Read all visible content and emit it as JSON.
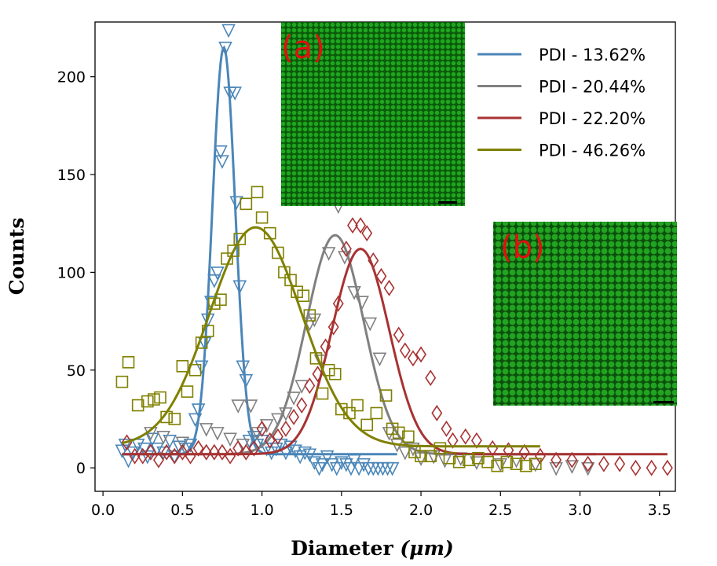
{
  "chart_data": {
    "type": "scatter",
    "title": "",
    "xlabel": "Diameter (μm)",
    "xlabel_main": "Diameter",
    "xlabel_unit": "(μm)",
    "ylabel": "Counts",
    "xlim": [
      -0.05,
      3.6
    ],
    "ylim": [
      -12,
      228
    ],
    "xticks": [
      "0.0",
      "0.5",
      "1.0",
      "1.5",
      "2.0",
      "2.5",
      "3.0",
      "3.5"
    ],
    "xtick_values": [
      0.0,
      0.5,
      1.0,
      1.5,
      2.0,
      2.5,
      3.0,
      3.5
    ],
    "yticks": [
      "0",
      "50",
      "100",
      "150",
      "200"
    ],
    "ytick_values": [
      0,
      50,
      100,
      150,
      200
    ],
    "grid": false,
    "legend_position": "top-right",
    "series": [
      {
        "name": "PDI - 13.62%",
        "color": "#4a86b8",
        "marker": "triangle-down",
        "fit": {
          "peak": 208,
          "center": 0.76,
          "width": 0.072,
          "baseline": 7,
          "xmin": 0.12,
          "xmax": 1.85
        },
        "points": [
          [
            0.12,
            9
          ],
          [
            0.14,
            12
          ],
          [
            0.16,
            4
          ],
          [
            0.19,
            8
          ],
          [
            0.22,
            12
          ],
          [
            0.26,
            10
          ],
          [
            0.28,
            6
          ],
          [
            0.31,
            15
          ],
          [
            0.34,
            10
          ],
          [
            0.38,
            8
          ],
          [
            0.42,
            14
          ],
          [
            0.45,
            6
          ],
          [
            0.48,
            11
          ],
          [
            0.52,
            10
          ],
          [
            0.55,
            12
          ],
          [
            0.58,
            25
          ],
          [
            0.6,
            30
          ],
          [
            0.62,
            52
          ],
          [
            0.64,
            64
          ],
          [
            0.66,
            76
          ],
          [
            0.68,
            85
          ],
          [
            0.7,
            96
          ],
          [
            0.72,
            100
          ],
          [
            0.74,
            162
          ],
          [
            0.75,
            157
          ],
          [
            0.77,
            215
          ],
          [
            0.79,
            224
          ],
          [
            0.8,
            192
          ],
          [
            0.83,
            192
          ],
          [
            0.84,
            136
          ],
          [
            0.86,
            93
          ],
          [
            0.88,
            52
          ],
          [
            0.9,
            45
          ],
          [
            0.92,
            14
          ],
          [
            0.95,
            16
          ],
          [
            0.97,
            12
          ],
          [
            1.0,
            14
          ],
          [
            1.03,
            10
          ],
          [
            1.06,
            8
          ],
          [
            1.09,
            10
          ],
          [
            1.12,
            12
          ],
          [
            1.15,
            8
          ],
          [
            1.18,
            11
          ],
          [
            1.21,
            9
          ],
          [
            1.24,
            6
          ],
          [
            1.27,
            8
          ],
          [
            1.3,
            7
          ],
          [
            1.33,
            3
          ],
          [
            1.36,
            0
          ],
          [
            1.38,
            2
          ],
          [
            1.41,
            6
          ],
          [
            1.44,
            2
          ],
          [
            1.47,
            0
          ],
          [
            1.5,
            3
          ],
          [
            1.53,
            2
          ],
          [
            1.56,
            0
          ],
          [
            1.58,
            4
          ],
          [
            1.61,
            0
          ],
          [
            1.64,
            2
          ],
          [
            1.67,
            0
          ],
          [
            1.7,
            0
          ],
          [
            1.73,
            0
          ],
          [
            1.76,
            0
          ],
          [
            1.79,
            0
          ],
          [
            1.82,
            0
          ]
        ]
      },
      {
        "name": "PDI - 20.44%",
        "color": "#808080",
        "marker": "triangle-down",
        "fit": {
          "peak": 112,
          "center": 1.46,
          "width": 0.18,
          "baseline": 7,
          "xmin": 0.3,
          "xmax": 3.1
        },
        "points": [
          [
            0.3,
            18
          ],
          [
            0.38,
            16
          ],
          [
            0.5,
            13
          ],
          [
            0.65,
            20
          ],
          [
            0.72,
            18
          ],
          [
            0.8,
            15
          ],
          [
            0.85,
            32
          ],
          [
            0.88,
            12
          ],
          [
            0.93,
            32
          ],
          [
            0.97,
            18
          ],
          [
            1.03,
            22
          ],
          [
            1.1,
            25
          ],
          [
            1.15,
            28
          ],
          [
            1.2,
            36
          ],
          [
            1.25,
            42
          ],
          [
            1.3,
            74
          ],
          [
            1.33,
            76
          ],
          [
            1.37,
            55
          ],
          [
            1.42,
            110
          ],
          [
            1.48,
            134
          ],
          [
            1.52,
            108
          ],
          [
            1.58,
            90
          ],
          [
            1.63,
            85
          ],
          [
            1.68,
            74
          ],
          [
            1.74,
            56
          ],
          [
            1.8,
            18
          ],
          [
            1.85,
            12
          ],
          [
            1.9,
            8
          ],
          [
            1.95,
            10
          ],
          [
            2.0,
            5
          ],
          [
            2.08,
            6
          ],
          [
            2.15,
            4
          ],
          [
            2.25,
            5
          ],
          [
            2.35,
            3
          ],
          [
            2.5,
            2
          ],
          [
            2.6,
            4
          ],
          [
            2.72,
            2
          ],
          [
            2.85,
            0
          ],
          [
            2.95,
            1
          ],
          [
            3.05,
            0
          ]
        ]
      },
      {
        "name": "PDI - 22.20%",
        "color": "#a83232",
        "marker": "diamond",
        "fit": {
          "peak": 105,
          "center": 1.62,
          "width": 0.18,
          "baseline": 7,
          "xmin": 0.12,
          "xmax": 3.55
        },
        "points": [
          [
            0.15,
            13
          ],
          [
            0.2,
            6
          ],
          [
            0.25,
            6
          ],
          [
            0.3,
            8
          ],
          [
            0.35,
            4
          ],
          [
            0.4,
            8
          ],
          [
            0.45,
            6
          ],
          [
            0.5,
            8
          ],
          [
            0.55,
            6
          ],
          [
            0.6,
            10
          ],
          [
            0.65,
            8
          ],
          [
            0.7,
            8
          ],
          [
            0.75,
            8
          ],
          [
            0.8,
            6
          ],
          [
            0.85,
            10
          ],
          [
            0.9,
            8
          ],
          [
            0.95,
            10
          ],
          [
            1.0,
            20
          ],
          [
            1.05,
            14
          ],
          [
            1.1,
            16
          ],
          [
            1.15,
            20
          ],
          [
            1.2,
            26
          ],
          [
            1.25,
            32
          ],
          [
            1.3,
            42
          ],
          [
            1.35,
            48
          ],
          [
            1.4,
            62
          ],
          [
            1.45,
            72
          ],
          [
            1.48,
            84
          ],
          [
            1.53,
            112
          ],
          [
            1.57,
            124
          ],
          [
            1.62,
            124
          ],
          [
            1.66,
            120
          ],
          [
            1.7,
            106
          ],
          [
            1.75,
            98
          ],
          [
            1.8,
            92
          ],
          [
            1.86,
            68
          ],
          [
            1.9,
            60
          ],
          [
            1.95,
            56
          ],
          [
            2.0,
            58
          ],
          [
            2.06,
            46
          ],
          [
            2.1,
            28
          ],
          [
            2.16,
            20
          ],
          [
            2.2,
            14
          ],
          [
            2.28,
            16
          ],
          [
            2.35,
            14
          ],
          [
            2.45,
            10
          ],
          [
            2.55,
            9
          ],
          [
            2.65,
            8
          ],
          [
            2.75,
            6
          ],
          [
            2.85,
            4
          ],
          [
            2.95,
            4
          ],
          [
            3.05,
            2
          ],
          [
            3.15,
            2
          ],
          [
            3.25,
            2
          ],
          [
            3.35,
            0
          ],
          [
            3.45,
            0
          ],
          [
            3.55,
            0
          ]
        ]
      },
      {
        "name": "PDI - 46.26%",
        "color": "#808000",
        "marker": "square",
        "fit": {
          "peak": 112,
          "center": 0.96,
          "width": 0.29,
          "baseline": 11,
          "xmin": 0.12,
          "xmax": 2.75
        },
        "points": [
          [
            0.12,
            44
          ],
          [
            0.16,
            54
          ],
          [
            0.22,
            32
          ],
          [
            0.28,
            34
          ],
          [
            0.32,
            35
          ],
          [
            0.36,
            36
          ],
          [
            0.4,
            26
          ],
          [
            0.45,
            25
          ],
          [
            0.5,
            52
          ],
          [
            0.53,
            39
          ],
          [
            0.58,
            50
          ],
          [
            0.62,
            64
          ],
          [
            0.66,
            70
          ],
          [
            0.7,
            84
          ],
          [
            0.74,
            86
          ],
          [
            0.78,
            107
          ],
          [
            0.82,
            111
          ],
          [
            0.86,
            117
          ],
          [
            0.9,
            135
          ],
          [
            0.97,
            141
          ],
          [
            1.0,
            128
          ],
          [
            1.05,
            120
          ],
          [
            1.1,
            110
          ],
          [
            1.14,
            100
          ],
          [
            1.18,
            96
          ],
          [
            1.22,
            90
          ],
          [
            1.26,
            88
          ],
          [
            1.3,
            78
          ],
          [
            1.34,
            56
          ],
          [
            1.38,
            38
          ],
          [
            1.42,
            50
          ],
          [
            1.46,
            48
          ],
          [
            1.5,
            30
          ],
          [
            1.55,
            28
          ],
          [
            1.6,
            32
          ],
          [
            1.66,
            22
          ],
          [
            1.72,
            28
          ],
          [
            1.78,
            37
          ],
          [
            1.82,
            20
          ],
          [
            1.86,
            18
          ],
          [
            1.92,
            16
          ],
          [
            1.96,
            8
          ],
          [
            2.0,
            6
          ],
          [
            2.06,
            6
          ],
          [
            2.12,
            10
          ],
          [
            2.18,
            5
          ],
          [
            2.24,
            3
          ],
          [
            2.3,
            4
          ],
          [
            2.36,
            5
          ],
          [
            2.42,
            3
          ],
          [
            2.48,
            1
          ],
          [
            2.54,
            3
          ],
          [
            2.6,
            2
          ],
          [
            2.66,
            1
          ],
          [
            2.72,
            2
          ]
        ]
      }
    ],
    "insets": [
      {
        "label": "(a)",
        "spacing": 7
      },
      {
        "label": "(b)",
        "spacing": 9
      }
    ]
  }
}
